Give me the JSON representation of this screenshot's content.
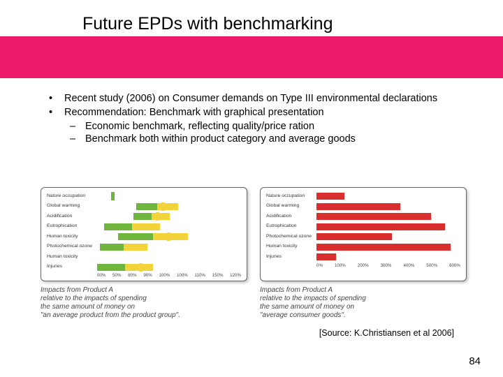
{
  "header": {
    "title": "Future EPDs with benchmarking"
  },
  "bullets": [
    {
      "mark": "•",
      "text": "Recent study (2006) on Consumer demands on Type III environmental declarations"
    },
    {
      "mark": "•",
      "text": "Recommendation: Benchmark with graphical presentation"
    }
  ],
  "sub_bullets": [
    {
      "mark": "–",
      "text": "Economic benchmark, reflecting quality/price ration"
    },
    {
      "mark": "–",
      "text": "Benchmark both within product category and average goods"
    }
  ],
  "chart_left": {
    "labels": [
      "Nature occupation",
      "Global warming",
      "Acidification",
      "Eutrophication",
      "Human toxicity",
      "Photochemical ozone",
      "Human toxicity",
      "Injuries"
    ],
    "rows": [
      {
        "a": [
          0,
          0
        ],
        "b": [
          0,
          0
        ],
        "marker": {
          "x": 0.1,
          "color": "#6fb53e"
        }
      },
      {
        "a": [
          0.28,
          0.58
        ],
        "b": [
          0.28,
          0.58
        ],
        "marker": {
          "x": 0.46,
          "color": "#f2d43a"
        }
      },
      {
        "a": [
          0.26,
          0.52
        ],
        "b": [
          0.26,
          0.52
        ],
        "marker": {
          "x": 0.42,
          "color": "#f2d43a"
        }
      },
      {
        "a": [
          0.05,
          0.45
        ],
        "b": [
          0.05,
          0.45
        ],
        "marker": null
      },
      {
        "a": [
          0.15,
          0.65
        ],
        "b": [
          0.15,
          0.65
        ],
        "marker": {
          "x": 0.5,
          "color": "#f2d43a"
        }
      },
      {
        "a": [
          0.02,
          0.36
        ],
        "b": [
          0.02,
          0.36
        ],
        "marker": null
      },
      {
        "a": [
          0,
          0
        ],
        "b": [
          0,
          0
        ],
        "marker": null
      },
      {
        "a": [
          0,
          0.4
        ],
        "b": [
          0,
          0.4
        ],
        "marker": {
          "x": 0.3,
          "color": "#f2d43a"
        }
      }
    ],
    "ticks": [
      "00%",
      "50%",
      "80%",
      "90%",
      "100%",
      "100%",
      "110%",
      "150%",
      "120%"
    ],
    "colors": {
      "axis": "#444"
    }
  },
  "chart_right": {
    "labels": [
      "Nature occupation",
      "Global warming",
      "Acidification",
      "Eutrophication",
      "Photochemical ozone",
      "Human toxicity",
      "Injuries"
    ],
    "rows": [
      {
        "c": [
          0.0,
          0.2
        ],
        "marker": null
      },
      {
        "c": [
          0.0,
          0.6
        ],
        "marker": null
      },
      {
        "c": [
          0.0,
          0.82
        ],
        "marker": null
      },
      {
        "c": [
          0.0,
          0.92
        ],
        "marker": null
      },
      {
        "c": [
          0.0,
          0.54
        ],
        "marker": null
      },
      {
        "c": [
          0.0,
          0.96
        ],
        "marker": null
      },
      {
        "c": [
          0.0,
          0.14
        ],
        "marker": null
      }
    ],
    "ticks": [
      "0%",
      "100%",
      "200%",
      "300%",
      "400%",
      "500%",
      "600%"
    ],
    "colors": {
      "axis": "#444"
    }
  },
  "captions": {
    "left": "Impacts from Product A\nrelative to the impacts of spending\nthe same amount of money on\n\"an average product from the product group\".",
    "right": "Impacts from Product A\nrelative to the impacts of spending\nthe same amount of money on\n\"average consumer goods\"."
  },
  "source": "[Source: K.Christiansen et al 2006]",
  "page": "84"
}
